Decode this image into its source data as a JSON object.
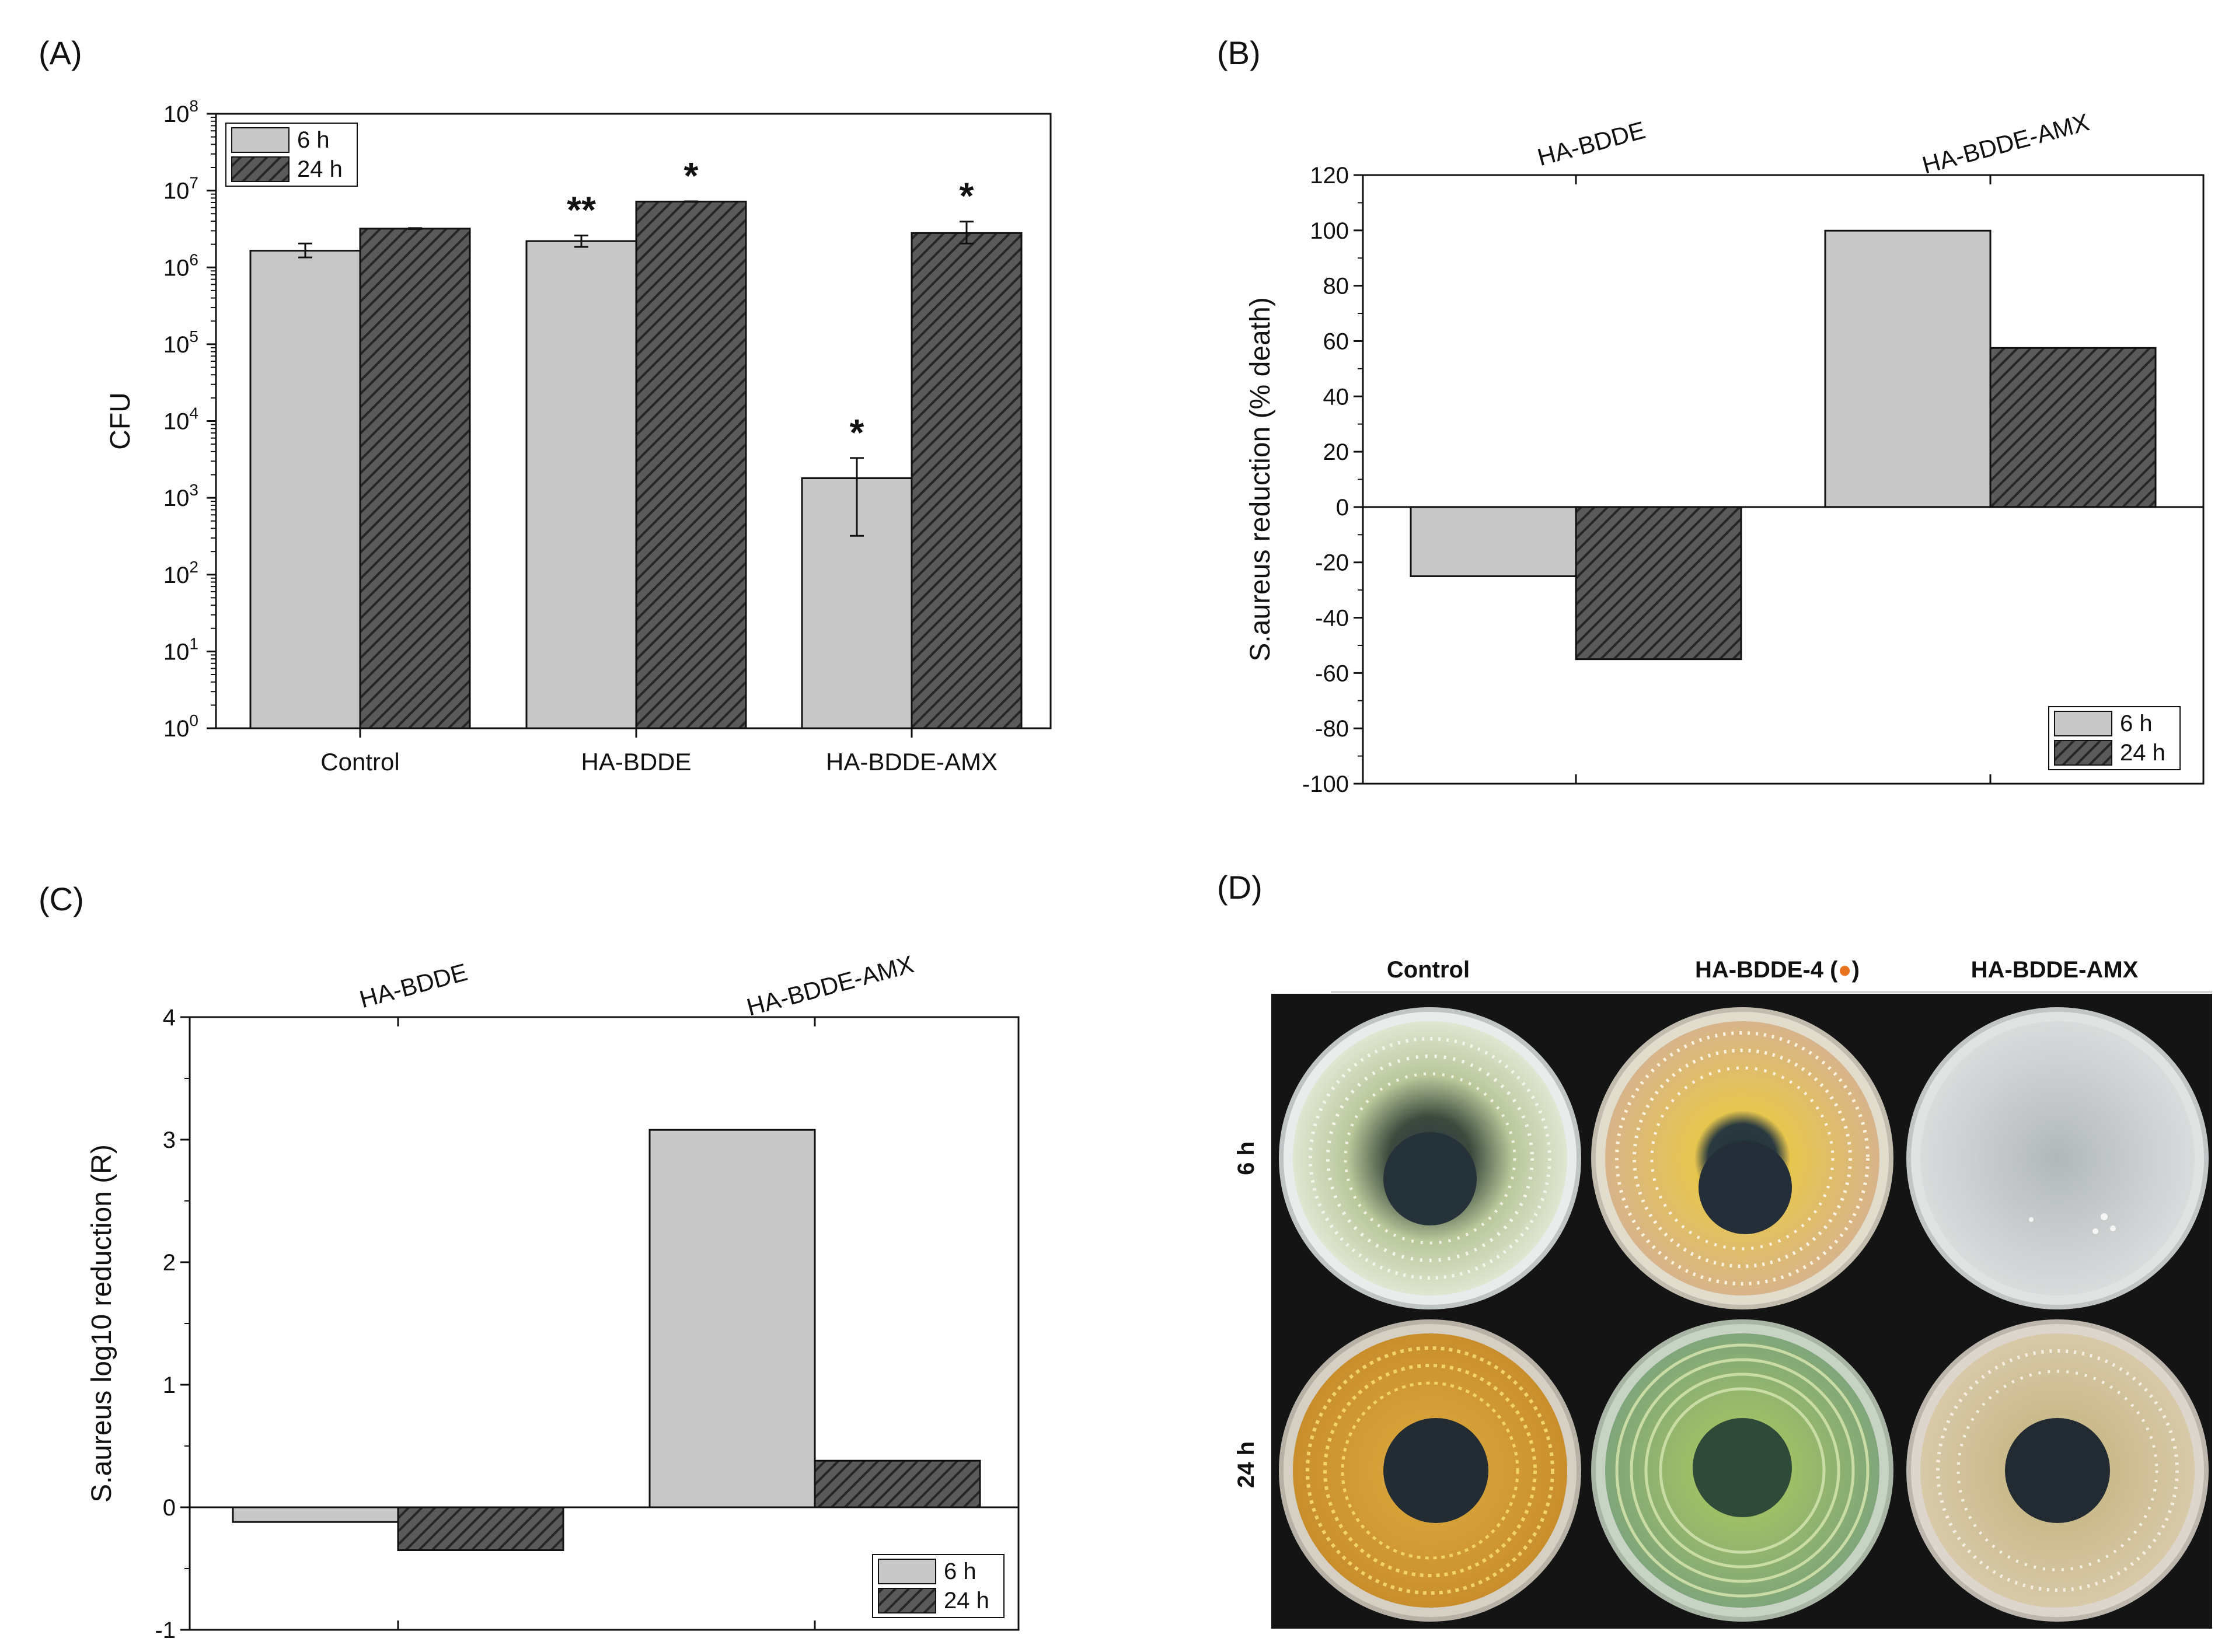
{
  "figure": {
    "panel_labels": [
      "(A)",
      "(B)",
      "(C)",
      "(D)"
    ],
    "series_names": [
      "6 h",
      "24 h"
    ],
    "colors": {
      "s6h": "#c8c8c8",
      "s24h": "#5a5a5a",
      "hatch": "#262626",
      "axis": "#111111",
      "plate_bg": "#141414"
    }
  },
  "chart_data": [
    {
      "id": "A",
      "type": "bar",
      "yscale": "log",
      "ylabel": "CFU",
      "ylim": [
        1,
        100000000
      ],
      "yticks": [
        {
          "value": 1,
          "base": "10",
          "exp": "0"
        },
        {
          "value": 10,
          "base": "10",
          "exp": "1"
        },
        {
          "value": 100,
          "base": "10",
          "exp": "2"
        },
        {
          "value": 1000,
          "base": "10",
          "exp": "3"
        },
        {
          "value": 10000,
          "base": "10",
          "exp": "4"
        },
        {
          "value": 100000,
          "base": "10",
          "exp": "5"
        },
        {
          "value": 1000000,
          "base": "10",
          "exp": "6"
        },
        {
          "value": 10000000,
          "base": "10",
          "exp": "7"
        },
        {
          "value": 100000000,
          "base": "10",
          "exp": "8"
        }
      ],
      "categories": [
        "Control",
        "HA-BDDE",
        "HA-BDDE-AMX"
      ],
      "category_label_position": "bottom",
      "series": [
        {
          "name": "6 h",
          "values": [
            1650000,
            2200000,
            1800
          ],
          "err_low": [
            1350000,
            1850000,
            320
          ],
          "err_high": [
            2050000,
            2600000,
            3300
          ],
          "stars": [
            "",
            "**",
            "*"
          ]
        },
        {
          "name": "24 h",
          "values": [
            3200000,
            7200000,
            2800000
          ],
          "err_low": [
            3150000,
            7150000,
            2050000
          ],
          "err_high": [
            3250000,
            7250000,
            3950000
          ],
          "stars": [
            "",
            "*",
            "*"
          ]
        }
      ],
      "legend": "top-left"
    },
    {
      "id": "B",
      "type": "bar",
      "yscale": "linear",
      "ylabel": "S.aureus reduction (% death)",
      "ylim": [
        -100,
        120
      ],
      "yticks": [
        {
          "value": -100,
          "label": "-100"
        },
        {
          "value": -80,
          "label": "-80"
        },
        {
          "value": -60,
          "label": "-60"
        },
        {
          "value": -40,
          "label": "-40"
        },
        {
          "value": -20,
          "label": "-20"
        },
        {
          "value": 0,
          "label": "0"
        },
        {
          "value": 20,
          "label": "20"
        },
        {
          "value": 40,
          "label": "40"
        },
        {
          "value": 60,
          "label": "60"
        },
        {
          "value": 80,
          "label": "80"
        },
        {
          "value": 100,
          "label": "100"
        },
        {
          "value": 120,
          "label": "120"
        }
      ],
      "categories": [
        "HA-BDDE",
        "HA-BDDE-AMX"
      ],
      "category_label_position": "top",
      "series": [
        {
          "name": "6 h",
          "values": [
            -25,
            99.9
          ]
        },
        {
          "name": "24 h",
          "values": [
            -55,
            57.5
          ]
        }
      ],
      "legend": "bottom-right"
    },
    {
      "id": "C",
      "type": "bar",
      "yscale": "linear",
      "ylabel": "S.aureus log10 reduction (R)",
      "ylim": [
        -1,
        4
      ],
      "yticks": [
        {
          "value": -1,
          "label": "-1"
        },
        {
          "value": 0,
          "label": "0"
        },
        {
          "value": 1,
          "label": "1"
        },
        {
          "value": 2,
          "label": "2"
        },
        {
          "value": 3,
          "label": "3"
        },
        {
          "value": 4,
          "label": "4"
        }
      ],
      "categories": [
        "HA-BDDE",
        "HA-BDDE-AMX"
      ],
      "category_label_position": "top",
      "series": [
        {
          "name": "6 h",
          "values": [
            -0.12,
            3.08
          ]
        },
        {
          "name": "24 h",
          "values": [
            -0.35,
            0.38
          ]
        }
      ],
      "legend": "bottom-right"
    }
  ],
  "photo_panel": {
    "columns": [
      "Control",
      "HA-BDDE-4 (",
      ")",
      "HA-BDDE-AMX"
    ],
    "marker_color": "#e8731f",
    "rows": [
      "6 h",
      "24 h"
    ]
  }
}
